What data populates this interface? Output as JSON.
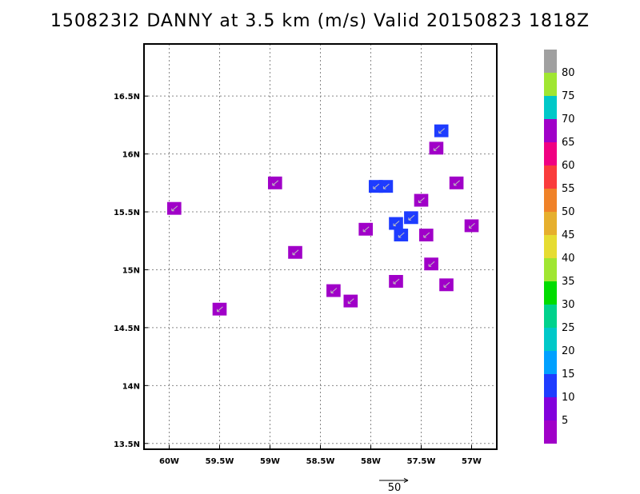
{
  "title": "150823I2 DANNY at 3.5 km (m/s) Valid 20150823 1818Z",
  "map": {
    "lon_range": [
      -60.25,
      -56.75
    ],
    "lat_range": [
      13.45,
      16.95
    ],
    "lon_ticks": [
      {
        "value": -60.0,
        "label": "60W"
      },
      {
        "value": -59.5,
        "label": "59.5W"
      },
      {
        "value": -59.0,
        "label": "59W"
      },
      {
        "value": -58.5,
        "label": "58.5W"
      },
      {
        "value": -58.0,
        "label": "58W"
      },
      {
        "value": -57.5,
        "label": "57.5W"
      },
      {
        "value": -57.0,
        "label": "57W"
      }
    ],
    "lat_ticks": [
      {
        "value": 16.5,
        "label": "16.5N"
      },
      {
        "value": 16.0,
        "label": "16N"
      },
      {
        "value": 15.5,
        "label": "15.5N"
      },
      {
        "value": 15.0,
        "label": "15N"
      },
      {
        "value": 14.5,
        "label": "14.5N"
      },
      {
        "value": 14.0,
        "label": "14N"
      },
      {
        "value": 13.5,
        "label": "13.5N"
      }
    ],
    "grid": "dotted",
    "vector_key_label": "50"
  },
  "colorbar": {
    "labels": [
      "5",
      "10",
      "15",
      "20",
      "25",
      "30",
      "35",
      "40",
      "45",
      "50",
      "55",
      "60",
      "65",
      "70",
      "75",
      "80"
    ],
    "colors": [
      "#a000c8",
      "#8200dc",
      "#1e3cff",
      "#00a0ff",
      "#00c8c8",
      "#00d28c",
      "#00dc00",
      "#a0e632",
      "#e6dc32",
      "#e6af2d",
      "#f08228",
      "#fa3c3c",
      "#f00082",
      "#a000c8",
      "#00c8c8",
      "#a0e632",
      "#a0a0a0"
    ]
  },
  "chart_data": {
    "type": "heatmap",
    "title": "150823I2 DANNY at 3.5 km (m/s) Valid 20150823 1818Z",
    "cells": [
      {
        "lon": -59.95,
        "lat": 15.53,
        "v": 5
      },
      {
        "lon": -59.5,
        "lat": 14.66,
        "v": 5
      },
      {
        "lon": -58.95,
        "lat": 15.75,
        "v": 5
      },
      {
        "lon": -58.75,
        "lat": 15.15,
        "v": 5
      },
      {
        "lon": -58.37,
        "lat": 14.82,
        "v": 5
      },
      {
        "lon": -58.2,
        "lat": 14.73,
        "v": 5
      },
      {
        "lon": -58.05,
        "lat": 15.35,
        "v": 5
      },
      {
        "lon": -57.95,
        "lat": 15.72,
        "v": 10
      },
      {
        "lon": -57.85,
        "lat": 15.72,
        "v": 10
      },
      {
        "lon": -57.75,
        "lat": 15.4,
        "v": 10
      },
      {
        "lon": -57.7,
        "lat": 15.3,
        "v": 10
      },
      {
        "lon": -57.6,
        "lat": 15.45,
        "v": 10
      },
      {
        "lon": -57.75,
        "lat": 14.9,
        "v": 5
      },
      {
        "lon": -57.5,
        "lat": 15.6,
        "v": 5
      },
      {
        "lon": -57.45,
        "lat": 15.3,
        "v": 5
      },
      {
        "lon": -57.4,
        "lat": 15.05,
        "v": 5
      },
      {
        "lon": -57.25,
        "lat": 14.87,
        "v": 5
      },
      {
        "lon": -57.35,
        "lat": 16.05,
        "v": 5
      },
      {
        "lon": -57.3,
        "lat": 16.2,
        "v": 10
      },
      {
        "lon": -57.15,
        "lat": 15.75,
        "v": 5
      },
      {
        "lon": -57.0,
        "lat": 15.38,
        "v": 5
      }
    ],
    "units": "m/s"
  }
}
